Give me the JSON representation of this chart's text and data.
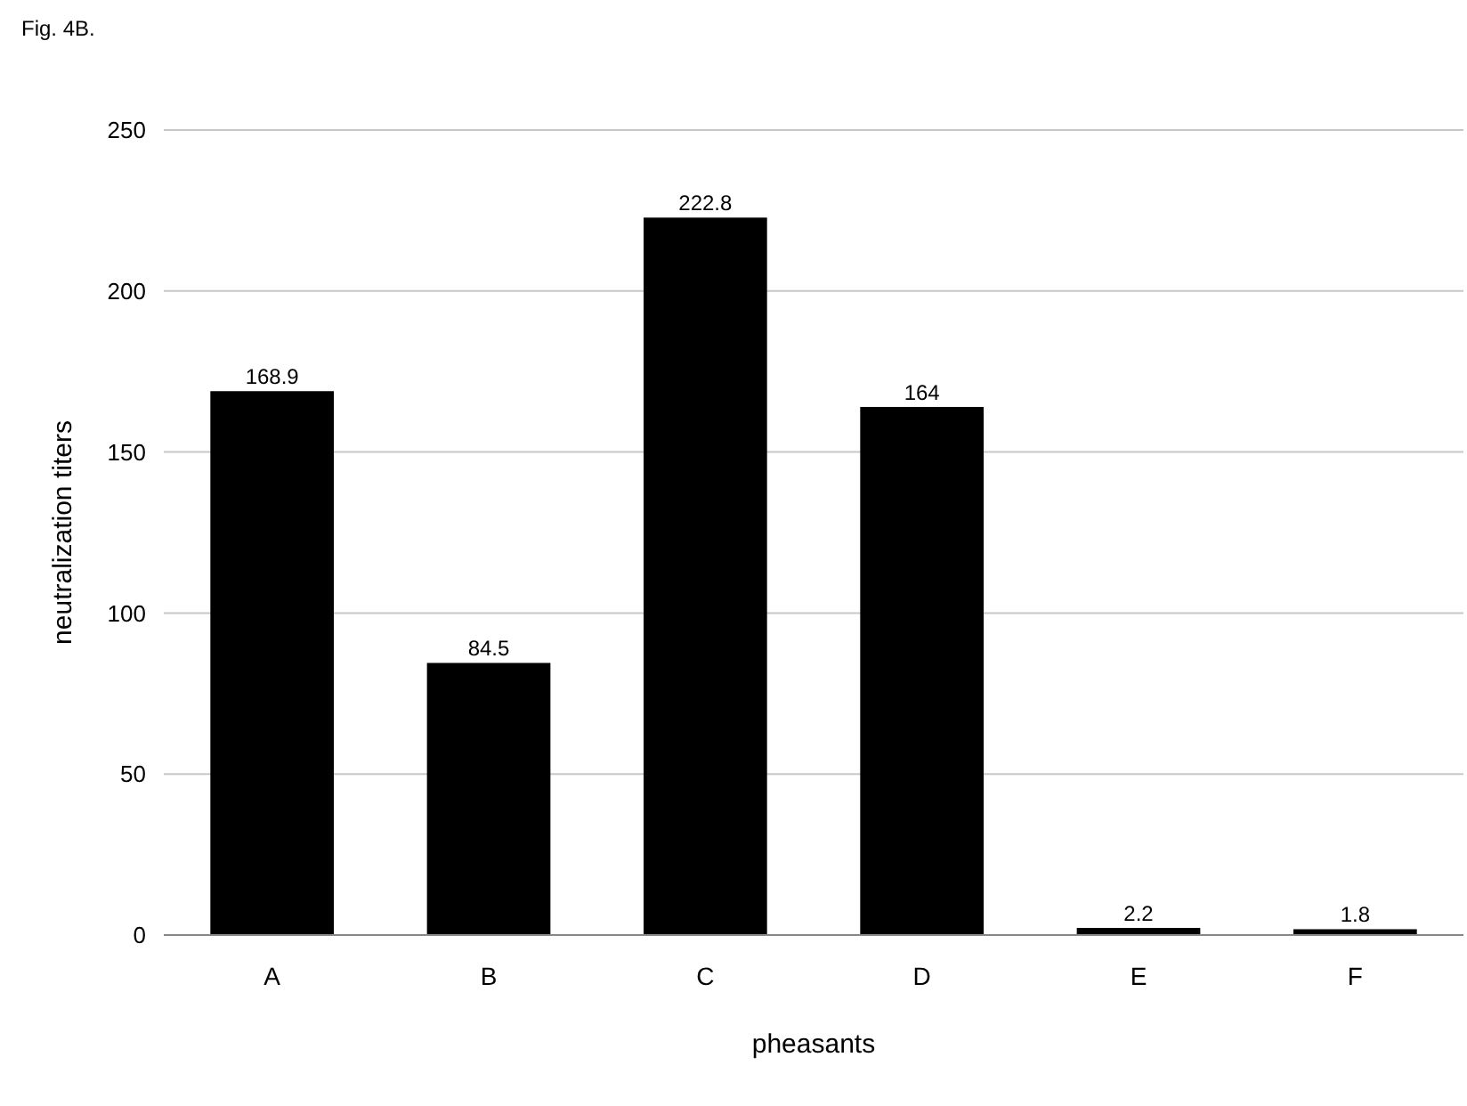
{
  "chart_data": {
    "type": "bar",
    "title": "Fig. 4B.",
    "xlabel": "pheasants",
    "ylabel": "neutralization titers",
    "categories": [
      "A",
      "B",
      "C",
      "D",
      "E",
      "F"
    ],
    "values": [
      168.9,
      84.5,
      222.8,
      164,
      2.2,
      1.8
    ],
    "color": "#000000",
    "ylim": [
      0,
      250
    ],
    "yticks": [
      0,
      50,
      100,
      150,
      200,
      250
    ],
    "grid": "y",
    "data_labels": true
  }
}
